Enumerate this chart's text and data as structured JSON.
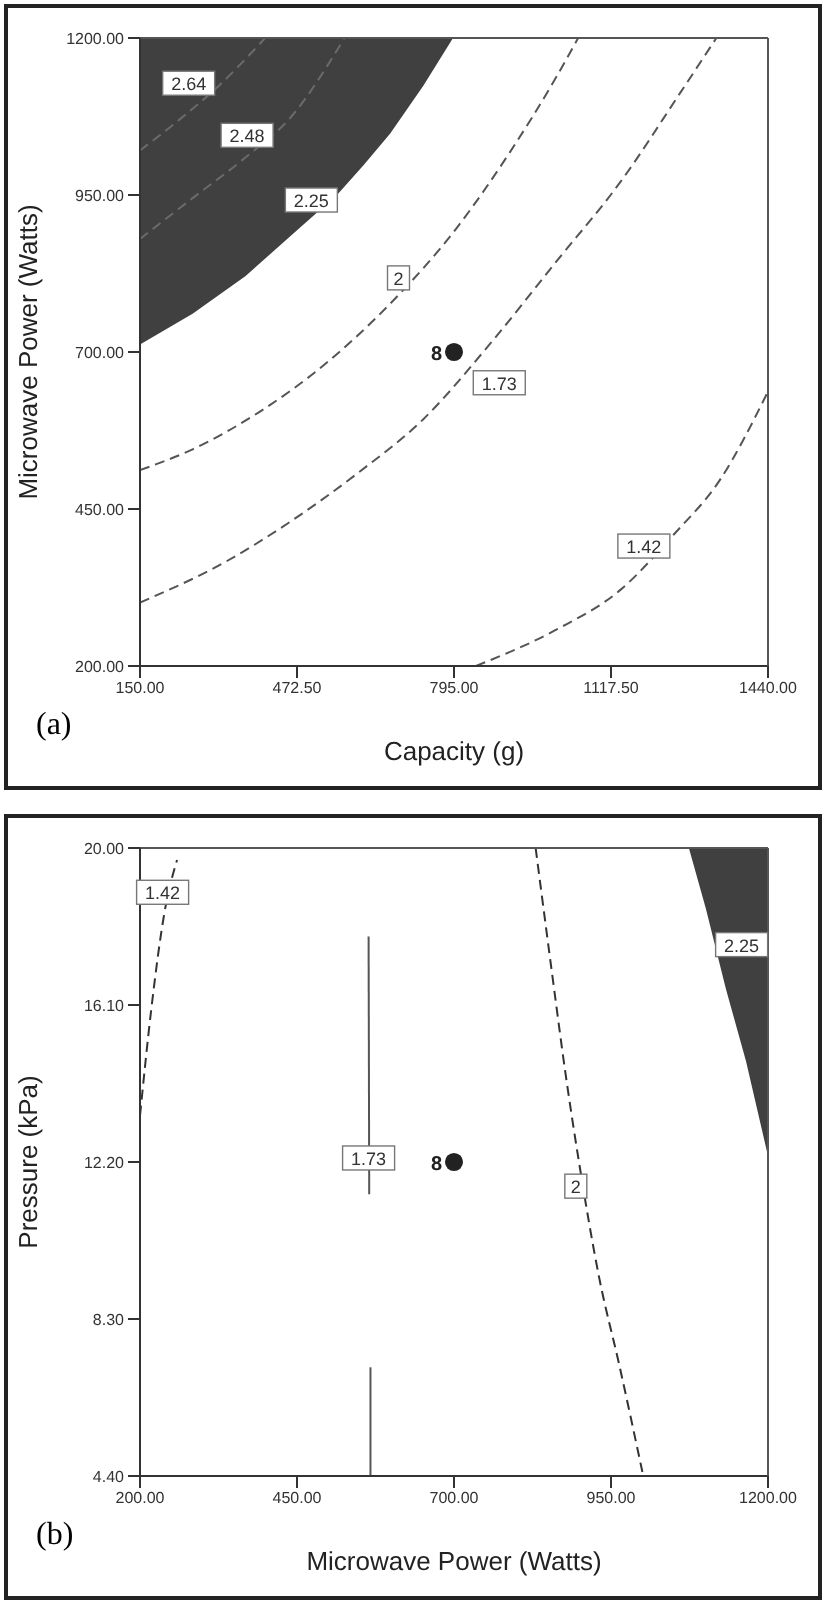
{
  "chart_data": [
    {
      "type": "line",
      "xlabel": "Capacity (g)",
      "ylabel": "Microwave Power (Watts)",
      "grid": false,
      "legend": false,
      "xlim": [
        150,
        1440
      ],
      "ylim": [
        200,
        1200
      ],
      "xticks": [
        {
          "value": 150,
          "label": "150.00"
        },
        {
          "value": 472.5,
          "label": "472.50"
        },
        {
          "value": 795,
          "label": "795.00"
        },
        {
          "value": 1117.5,
          "label": "1117.50"
        },
        {
          "value": 1440,
          "label": "1440.00"
        }
      ],
      "yticks": [
        {
          "value": 200,
          "label": "200.00"
        },
        {
          "value": 450,
          "label": "450.00"
        },
        {
          "value": 700,
          "label": "700.00"
        },
        {
          "value": 950,
          "label": "950.00"
        },
        {
          "value": 1200,
          "label": "1200.00"
        }
      ],
      "series": [
        {
          "type": "area",
          "color": "#404040",
          "x": [
            150,
            150,
            258,
            367,
            461,
            556,
            610,
            664,
            732,
            793
          ],
          "values": [
            1200,
            712,
            761,
            821,
            886,
            951,
            998,
            1048,
            1124,
            1200
          ]
        },
        {
          "type": "line",
          "color": "#6a6a6a",
          "line_style": "dashed",
          "x": [
            150,
            258,
            367,
            461,
            570
          ],
          "values": [
            880,
            945,
            1010,
            1075,
            1200
          ]
        },
        {
          "type": "line",
          "color": "#6a6a6a",
          "line_style": "dashed",
          "x": [
            150,
            231,
            312,
            394,
            407
          ],
          "values": [
            1021,
            1070,
            1124,
            1189,
            1200
          ]
        },
        {
          "type": "line",
          "color": "#555555",
          "line_style": "dashed",
          "x": [
            150,
            258,
            394,
            529,
            664,
            800,
            908,
            1003,
            1050
          ],
          "values": [
            512,
            545,
            604,
            680,
            777,
            897,
            1016,
            1135,
            1200
          ]
        },
        {
          "type": "line",
          "color": "#555555",
          "line_style": "dashed",
          "x": [
            150,
            326,
            461,
            597,
            732,
            868,
            1003,
            1138,
            1260,
            1334
          ],
          "values": [
            301,
            366,
            431,
            507,
            593,
            712,
            842,
            972,
            1113,
            1200
          ]
        },
        {
          "type": "line",
          "color": "#555555",
          "line_style": "dashed",
          "x": [
            840,
            1003,
            1138,
            1246,
            1341,
            1440
          ],
          "values": [
            200,
            257,
            322,
            409,
            496,
            637
          ]
        },
        {
          "type": "scatter",
          "color": "#222222",
          "marker": "circle",
          "x": [
            795
          ],
          "values": [
            700
          ]
        }
      ],
      "annotations": [
        {
          "text": "2.64",
          "x": 250,
          "y": 1128
        },
        {
          "text": "2.48",
          "x": 370,
          "y": 1045
        },
        {
          "text": "2.25",
          "x": 502,
          "y": 942
        },
        {
          "text": "2",
          "x": 681,
          "y": 818
        },
        {
          "text": "1.73",
          "x": 888,
          "y": 651
        },
        {
          "text": "1.42",
          "x": 1185,
          "y": 391
        },
        {
          "text": "8",
          "x": 795,
          "y": 700
        },
        "(a)"
      ]
    },
    {
      "type": "line",
      "xlabel": "Microwave Power (Watts)",
      "ylabel": "Pressure (kPa)",
      "grid": false,
      "legend": false,
      "xlim": [
        200,
        1200
      ],
      "ylim": [
        4.4,
        20
      ],
      "xticks": [
        {
          "value": 200,
          "label": "200.00"
        },
        {
          "value": 450,
          "label": "450.00"
        },
        {
          "value": 700,
          "label": "700.00"
        },
        {
          "value": 950,
          "label": "950.00"
        },
        {
          "value": 1200,
          "label": "1200.00"
        }
      ],
      "yticks": [
        {
          "value": 4.4,
          "label": "4.40"
        },
        {
          "value": 8.3,
          "label": "8.30"
        },
        {
          "value": 12.2,
          "label": "12.20"
        },
        {
          "value": 16.1,
          "label": "16.10"
        },
        {
          "value": 20,
          "label": "20.00"
        }
      ],
      "series": [
        {
          "type": "area",
          "color": "#404040",
          "x": [
            1074,
            1101,
            1133,
            1165,
            1200,
            1200
          ],
          "values": [
            20,
            18.5,
            16.5,
            14.7,
            12.35,
            20
          ]
        },
        {
          "type": "line",
          "color": "#333333",
          "line_style": "dashed",
          "x": [
            200,
            218,
            239,
            259
          ],
          "values": [
            13.35,
            16,
            18.4,
            19.7
          ]
        },
        {
          "type": "line",
          "color": "#555555",
          "line_style": "solid",
          "x": [
            564,
            565
          ],
          "values": [
            17.8,
            11.4
          ]
        },
        {
          "type": "line",
          "color": "#555555",
          "line_style": "solid",
          "x": [
            567,
            567
          ],
          "values": [
            7.1,
            4.4
          ]
        },
        {
          "type": "line",
          "color": "#333333",
          "line_style": "dashed",
          "x": [
            830,
            856,
            878,
            899,
            931,
            963,
            1000
          ],
          "values": [
            20,
            16.9,
            14.35,
            12.2,
            9.34,
            7.17,
            4.5
          ]
        },
        {
          "type": "scatter",
          "color": "#222222",
          "marker": "circle",
          "x": [
            700
          ],
          "values": [
            12.2
          ]
        }
      ],
      "annotations": [
        {
          "text": "1.42",
          "x": 236,
          "y": 18.9
        },
        {
          "text": "1.73",
          "x": 564,
          "y": 12.3
        },
        {
          "text": "2",
          "x": 894,
          "y": 11.6
        },
        {
          "text": "2.25",
          "x": 1158,
          "y": 17.6
        },
        {
          "text": "8",
          "x": 700,
          "y": 12.2
        },
        "(b)"
      ]
    }
  ]
}
